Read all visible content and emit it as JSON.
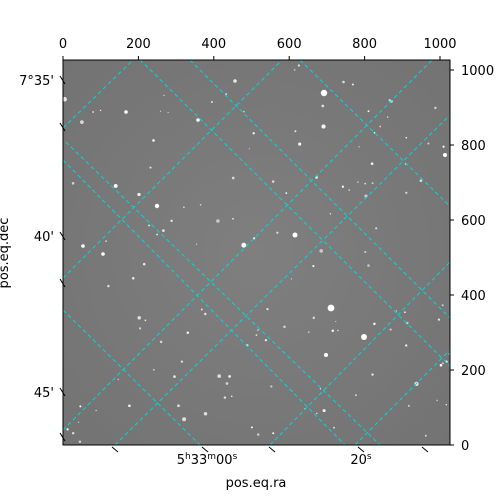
{
  "image": {
    "description_kind": "astronomical-image-with-wcs-overlay",
    "background_color": "#7a7a7a",
    "grid_color": "#00d8d8"
  },
  "axes": {
    "xlabel": "pos.eq.ra",
    "ylabel": "pos.eq.dec",
    "pixel_x_ticks": [
      "0",
      "200",
      "400",
      "600",
      "800",
      "1000"
    ],
    "pixel_y_ticks": [
      "0",
      "200",
      "400",
      "600",
      "800",
      "1000"
    ],
    "dec_ticks": [
      "7°35'",
      "40'",
      "45'"
    ],
    "ra_ticks": [
      {
        "main": "5",
        "h": "h",
        "m_val": "33",
        "m": "m",
        "s_val": "00",
        "s": "s"
      },
      {
        "main": "20",
        "s": "s"
      }
    ]
  }
}
